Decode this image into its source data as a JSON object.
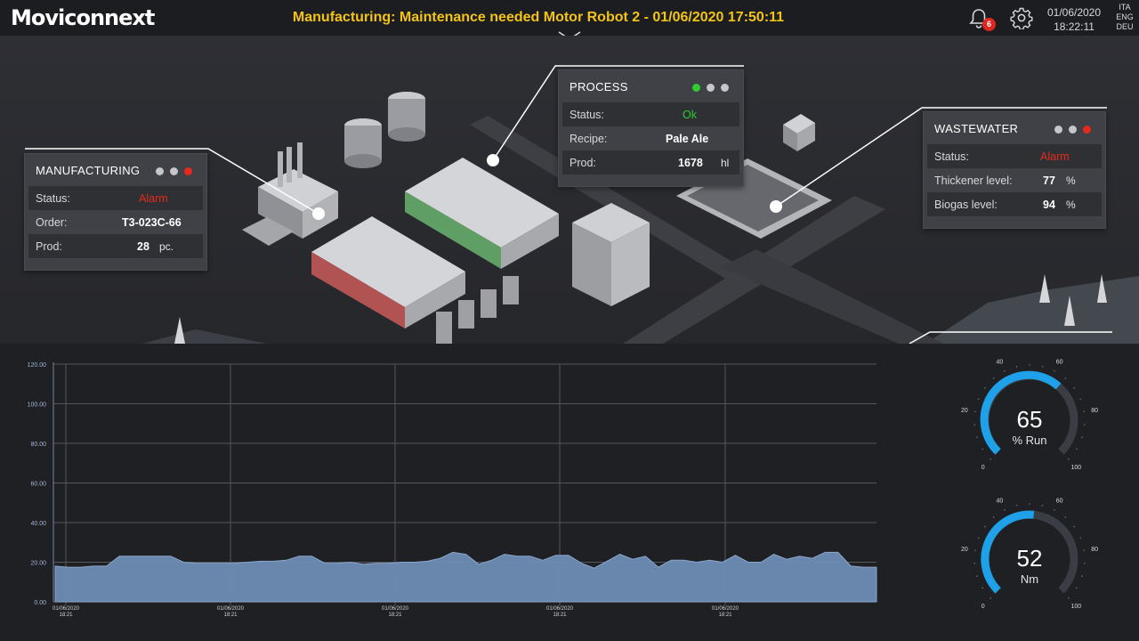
{
  "header": {
    "logo": "Moviconnext",
    "alarm_text": "Manufacturing: Maintenance needed Motor Robot 2 - 01/06/2020 17:50:11",
    "notification_count": "6",
    "date": "01/06/2020",
    "time": "18:22:11",
    "languages": [
      "ITA",
      "ENG",
      "DEU"
    ]
  },
  "manufacturing": {
    "title": "MANUFACTURING",
    "status_label": "Status:",
    "status_value": "Alarm",
    "order_label": "Order:",
    "order_value": "T3-023C-66",
    "prod_label": "Prod:",
    "prod_value": "28",
    "prod_unit": "pc."
  },
  "process": {
    "title": "PROCESS",
    "status_label": "Status:",
    "status_value": "Ok",
    "recipe_label": "Recipe:",
    "recipe_value": "Pale Ale",
    "prod_label": "Prod:",
    "prod_value": "1678",
    "prod_unit": "hl"
  },
  "wastewater": {
    "title": "WASTEWATER",
    "status_label": "Status:",
    "status_value": "Alarm",
    "thickener_label": "Thickener level:",
    "thickener_value": "77",
    "thickener_unit": "%",
    "biogas_label": "Biogas level:",
    "biogas_value": "94",
    "biogas_unit": "%"
  },
  "colors": {
    "alarm_banner": "#f3c316",
    "alarm": "#e52a1d",
    "ok": "#2ecc2e",
    "gauge_accent": "#1ea1e8",
    "chart_fill": "#6e8db5"
  },
  "chart_data": {
    "type": "area",
    "title": "",
    "xlabel": "",
    "ylabel": "",
    "ylim": [
      0,
      120
    ],
    "y_ticks": [
      "0.00",
      "20.00",
      "40.00",
      "60.00",
      "80.00",
      "100.00",
      "120.00"
    ],
    "x_ticks": [
      {
        "date": "01/06/2020",
        "time": "18:21"
      },
      {
        "date": "01/06/2020",
        "time": "18:21"
      },
      {
        "date": "01/06/2020",
        "time": "18:21"
      },
      {
        "date": "01/06/2020",
        "time": "18:21"
      },
      {
        "date": "01/06/2020",
        "time": "18:21"
      }
    ],
    "series": [
      {
        "values": [
          18,
          17.5,
          17.5,
          18,
          18,
          23,
          23,
          23,
          23,
          23,
          20,
          19.5,
          19.5,
          19.5,
          19.5,
          20,
          20.5,
          20.5,
          21,
          23,
          23,
          19.5,
          19.5,
          20,
          19,
          19.5,
          19.5,
          20,
          20,
          20.5,
          22,
          25,
          24,
          19,
          21,
          24,
          23,
          23,
          21,
          23.5,
          23.5,
          19.5,
          17,
          20.5,
          24,
          21.5,
          23,
          17.5,
          21,
          21,
          20,
          21,
          20,
          23.5,
          20,
          20,
          24,
          21.5,
          23,
          22,
          25,
          25,
          18,
          17.5,
          17.5
        ]
      }
    ]
  },
  "gauges": [
    {
      "value": 65,
      "unit": "% Run",
      "min": 0,
      "max": 100,
      "ticks": [
        "0",
        "20",
        "40",
        "60",
        "80",
        "100"
      ]
    },
    {
      "value": 52,
      "unit": "Nm",
      "min": 0,
      "max": 100,
      "ticks": [
        "0",
        "20",
        "40",
        "60",
        "80",
        "100"
      ]
    }
  ]
}
